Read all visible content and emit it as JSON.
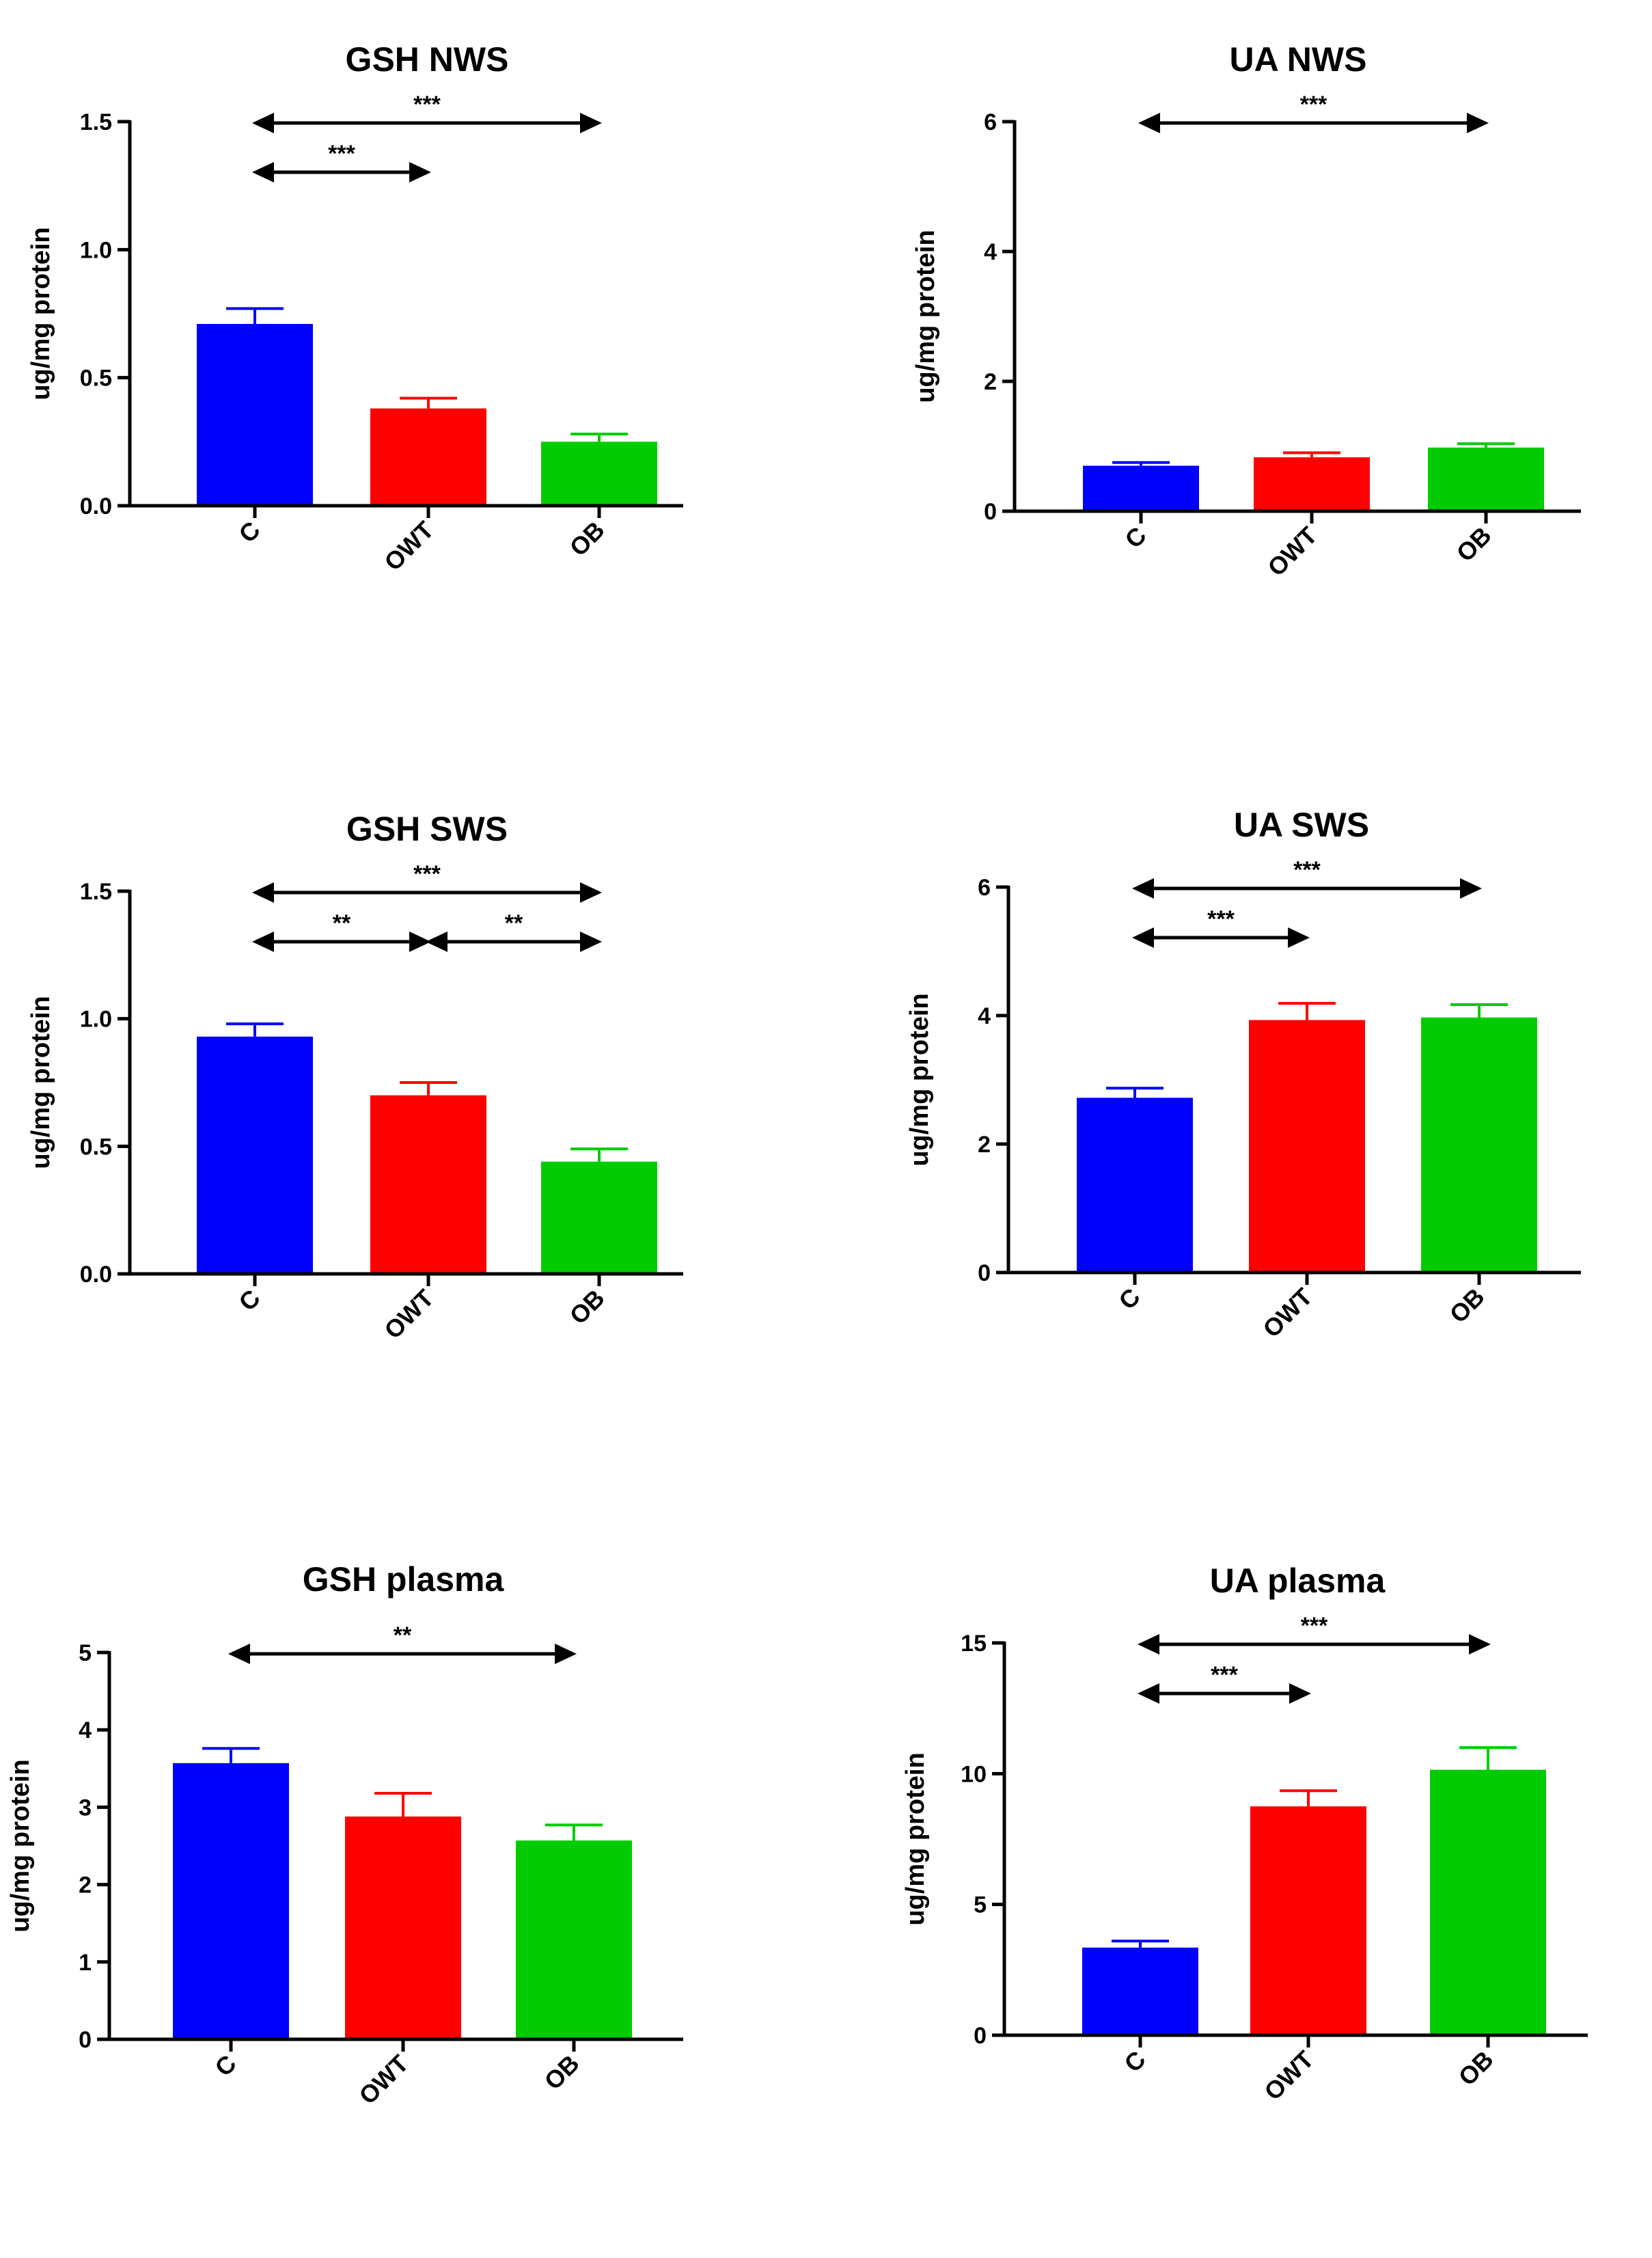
{
  "chart_data": [
    {
      "type": "bar",
      "title": "GSH NWS",
      "ylabel": "ug/mg protein",
      "xlabel": "",
      "categories": [
        "C",
        "OWT",
        "OB"
      ],
      "values": [
        0.71,
        0.38,
        0.25
      ],
      "errors": [
        0.06,
        0.04,
        0.03
      ],
      "colors": [
        "#0000ff",
        "#ff0000",
        "#00cc00"
      ],
      "ylim": [
        0,
        1.5
      ],
      "yticks": [
        0,
        0.5,
        1.0,
        1.5
      ],
      "ytick_labels": [
        "0.0",
        "0.5",
        "1.0",
        "1.5"
      ],
      "grid": false,
      "legend": "none",
      "significance": [
        {
          "from": 0,
          "to": 2,
          "label": "***",
          "level": 0
        },
        {
          "from": 0,
          "to": 1,
          "label": "***",
          "level": 1
        }
      ]
    },
    {
      "type": "bar",
      "title": "UA NWS",
      "ylabel": "ug/mg protein",
      "xlabel": "",
      "categories": [
        "C",
        "OWT",
        "OB"
      ],
      "values": [
        0.7,
        0.83,
        0.98
      ],
      "errors": [
        0.05,
        0.07,
        0.06
      ],
      "colors": [
        "#0000ff",
        "#ff0000",
        "#00cc00"
      ],
      "ylim": [
        0,
        6
      ],
      "yticks": [
        0,
        2,
        4,
        6
      ],
      "ytick_labels": [
        "0",
        "2",
        "4",
        "6"
      ],
      "grid": false,
      "legend": "none",
      "significance": [
        {
          "from": 0,
          "to": 2,
          "label": "***",
          "level": 0
        }
      ]
    },
    {
      "type": "bar",
      "title": "GSH SWS",
      "ylabel": "ug/mg protein",
      "xlabel": "",
      "categories": [
        "C",
        "OWT",
        "OB"
      ],
      "values": [
        0.93,
        0.7,
        0.44
      ],
      "errors": [
        0.05,
        0.05,
        0.05
      ],
      "colors": [
        "#0000ff",
        "#ff0000",
        "#00cc00"
      ],
      "ylim": [
        0,
        1.5
      ],
      "yticks": [
        0,
        0.5,
        1.0,
        1.5
      ],
      "ytick_labels": [
        "0.0",
        "0.5",
        "1.0",
        "1.5"
      ],
      "grid": false,
      "legend": "none",
      "significance": [
        {
          "from": 0,
          "to": 2,
          "label": "***",
          "level": 0
        },
        {
          "from": 0,
          "to": 1,
          "label": "**",
          "level": 1
        },
        {
          "from": 1,
          "to": 2,
          "label": "**",
          "level": 1
        }
      ]
    },
    {
      "type": "bar",
      "title": "UA SWS",
      "ylabel": "ug/mg protein",
      "xlabel": "",
      "categories": [
        "C",
        "OWT",
        "OB"
      ],
      "values": [
        2.72,
        3.93,
        3.97
      ],
      "errors": [
        0.15,
        0.26,
        0.2
      ],
      "colors": [
        "#0000ff",
        "#ff0000",
        "#00cc00"
      ],
      "ylim": [
        0,
        6
      ],
      "yticks": [
        0,
        2,
        4,
        6
      ],
      "ytick_labels": [
        "0",
        "2",
        "4",
        "6"
      ],
      "grid": false,
      "legend": "none",
      "significance": [
        {
          "from": 0,
          "to": 2,
          "label": "***",
          "level": 0
        },
        {
          "from": 0,
          "to": 1,
          "label": "***",
          "level": 1
        }
      ]
    },
    {
      "type": "bar",
      "title": "GSH plasma",
      "ylabel": "ug/mg protein",
      "xlabel": "",
      "categories": [
        "C",
        "OWT",
        "OB"
      ],
      "values": [
        3.57,
        2.88,
        2.57
      ],
      "errors": [
        0.19,
        0.3,
        0.2
      ],
      "colors": [
        "#0000ff",
        "#ff0000",
        "#00cc00"
      ],
      "ylim": [
        0,
        5
      ],
      "yticks": [
        0,
        1,
        2,
        3,
        4,
        5
      ],
      "ytick_labels": [
        "0",
        "1",
        "2",
        "3",
        "4",
        "5"
      ],
      "grid": false,
      "legend": "none",
      "significance": [
        {
          "from": 0,
          "to": 2,
          "label": "**",
          "level": 0
        }
      ]
    },
    {
      "type": "bar",
      "title": "UA plasma",
      "ylabel": "ug/mg protein",
      "xlabel": "",
      "categories": [
        "C",
        "OWT",
        "OB"
      ],
      "values": [
        3.35,
        8.75,
        10.15
      ],
      "errors": [
        0.25,
        0.6,
        0.85
      ],
      "colors": [
        "#0000ff",
        "#ff0000",
        "#00cc00"
      ],
      "ylim": [
        0,
        15
      ],
      "yticks": [
        0,
        5,
        10,
        15
      ],
      "ytick_labels": [
        "0",
        "5",
        "10",
        "15"
      ],
      "grid": false,
      "legend": "none",
      "significance": [
        {
          "from": 0,
          "to": 2,
          "label": "***",
          "level": 0
        },
        {
          "from": 0,
          "to": 1,
          "label": "***",
          "level": 1
        }
      ]
    }
  ]
}
